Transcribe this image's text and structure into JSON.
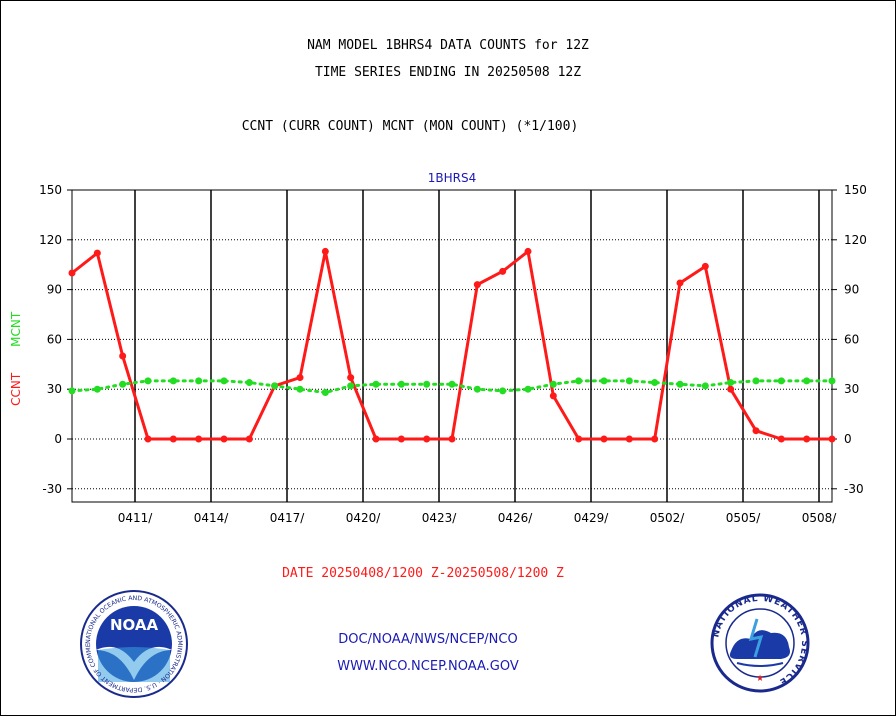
{
  "header": {
    "title_line1": "NAM MODEL 1BHRS4 DATA COUNTS for 12Z",
    "title_line2": "TIME SERIES ENDING IN 20250508 12Z",
    "subtitle": "CCNT (CURR COUNT) MCNT (MON COUNT) (*1/100)"
  },
  "footer": {
    "date_range": "DATE 20250408/1200 Z-20250508/1200 Z",
    "org_path": "DOC/NOAA/NWS/NCEP/NCO",
    "website": "WWW.NCO.NCEP.NOAA.GOV",
    "noaa_logo_text": "NOAA",
    "noaa_seal_text": "NATIONAL OCEANIC AND ATMOSPHERIC ADMINISTRATION · U.S. DEPARTMENT OF COMMERCE",
    "nws_seal_text": "NATIONAL WEATHER SERVICE"
  },
  "colors": {
    "ccnt": "#ff1a1a",
    "mcnt": "#22dd22",
    "axis": "#000000",
    "panel_label": "#1a1ab4"
  },
  "chart_data": {
    "type": "line",
    "title": "1BHRS4",
    "ylabel_left_ccnt": "CCNT",
    "ylabel_left_mcnt": "MCNT",
    "ylim": [
      -36,
      150
    ],
    "yticks": [
      -30,
      0,
      30,
      60,
      90,
      120,
      150
    ],
    "x": [
      "0408",
      "0409",
      "0410",
      "0411",
      "0412",
      "0413",
      "0414",
      "0415",
      "0416",
      "0417",
      "0418",
      "0419",
      "0420",
      "0421",
      "0422",
      "0423",
      "0424",
      "0425",
      "0426",
      "0427",
      "0428",
      "0429",
      "0430",
      "0501",
      "0502",
      "0503",
      "0504",
      "0505",
      "0506",
      "0507",
      "0508"
    ],
    "xtick_labels": [
      "0411/",
      "0414/",
      "0417/",
      "0420/",
      "0423/",
      "0426/",
      "0429/",
      "0502/",
      "0505/",
      "0508/"
    ],
    "xtick_dates": [
      "0411",
      "0414",
      "0417",
      "0420",
      "0423",
      "0426",
      "0429",
      "0502",
      "0505",
      "0508"
    ],
    "grid_y": true,
    "series": [
      {
        "name": "CCNT",
        "values": [
          100,
          112,
          50,
          0,
          0,
          0,
          0,
          0,
          32,
          37,
          113,
          37,
          0,
          0,
          0,
          0,
          93,
          101,
          113,
          26,
          0,
          0,
          0,
          0,
          94,
          104,
          30,
          5,
          0,
          0,
          0
        ]
      },
      {
        "name": "MCNT",
        "values": [
          29,
          30,
          33,
          35,
          35,
          35,
          35,
          34,
          32,
          30,
          28,
          32,
          33,
          33,
          33,
          33,
          30,
          29,
          30,
          33,
          35,
          35,
          35,
          34,
          33,
          32,
          34,
          35,
          35,
          35,
          35
        ]
      }
    ]
  }
}
